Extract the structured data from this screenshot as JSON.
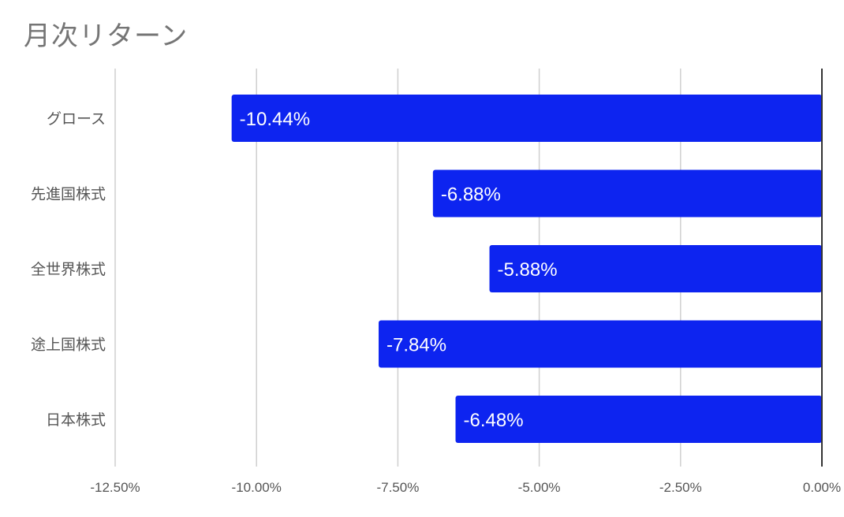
{
  "chart_data": {
    "type": "bar",
    "orientation": "horizontal",
    "title": "月次リターン",
    "categories": [
      "グロース",
      "先進国株式",
      "全世界株式",
      "途上国株式",
      "日本株式"
    ],
    "values": [
      -10.44,
      -6.88,
      -5.88,
      -7.84,
      -6.48
    ],
    "data_labels": [
      "-10.44%",
      "-6.88%",
      "-5.88%",
      "-7.84%",
      "-6.48%"
    ],
    "x_ticks": [
      -12.5,
      -10.0,
      -7.5,
      -5.0,
      -2.5,
      0.0
    ],
    "x_tick_labels": [
      "-12.50%",
      "-10.00%",
      "-7.50%",
      "-5.00%",
      "-2.50%",
      "0.00%"
    ],
    "xlim": [
      -12.5,
      0.0
    ],
    "xlabel": "",
    "ylabel": "",
    "grid": true,
    "legend": "none",
    "bar_color": "#0d24f0"
  }
}
